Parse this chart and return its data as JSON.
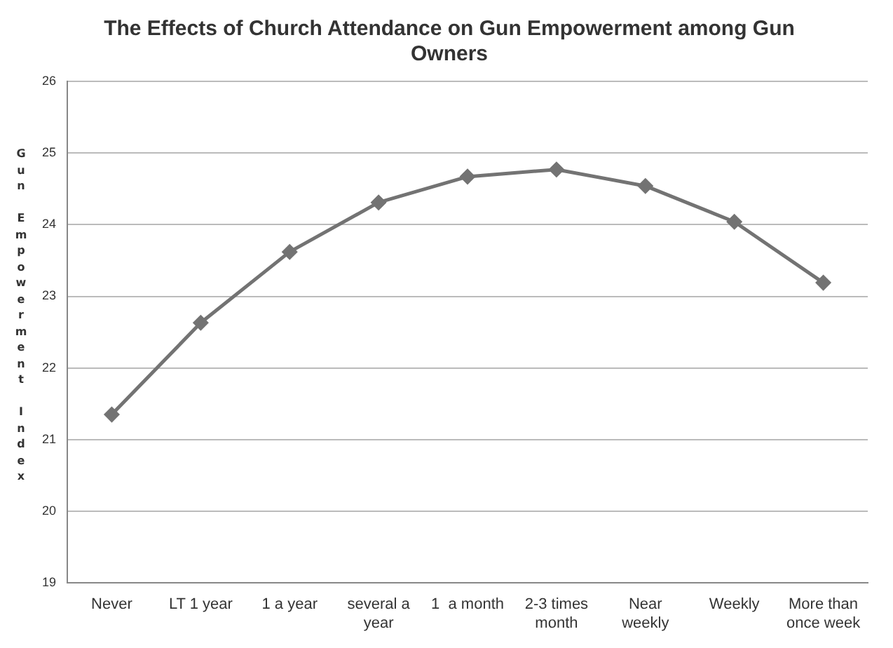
{
  "chart_data": {
    "type": "line",
    "title": "The Effects of Church Attendance on Gun Empowerment among Gun Owners",
    "ylabel": "Gun Empowerment Index",
    "categories": [
      "Never",
      "LT 1 year",
      "1 a year",
      "several a year",
      "1  a month",
      "2-3 times month",
      "Near weekly",
      "Weekly",
      "More than once week"
    ],
    "series": [
      {
        "color": "#737373",
        "values": [
          21.35,
          22.63,
          23.62,
          24.31,
          24.67,
          24.77,
          24.54,
          24.04,
          23.19
        ]
      }
    ],
    "ylim": [
      19,
      26
    ],
    "yticks": [
      19,
      20,
      21,
      22,
      23,
      24,
      25,
      26
    ],
    "grid": "y",
    "marker": "diamond",
    "line_style": "solid",
    "legend": false
  }
}
